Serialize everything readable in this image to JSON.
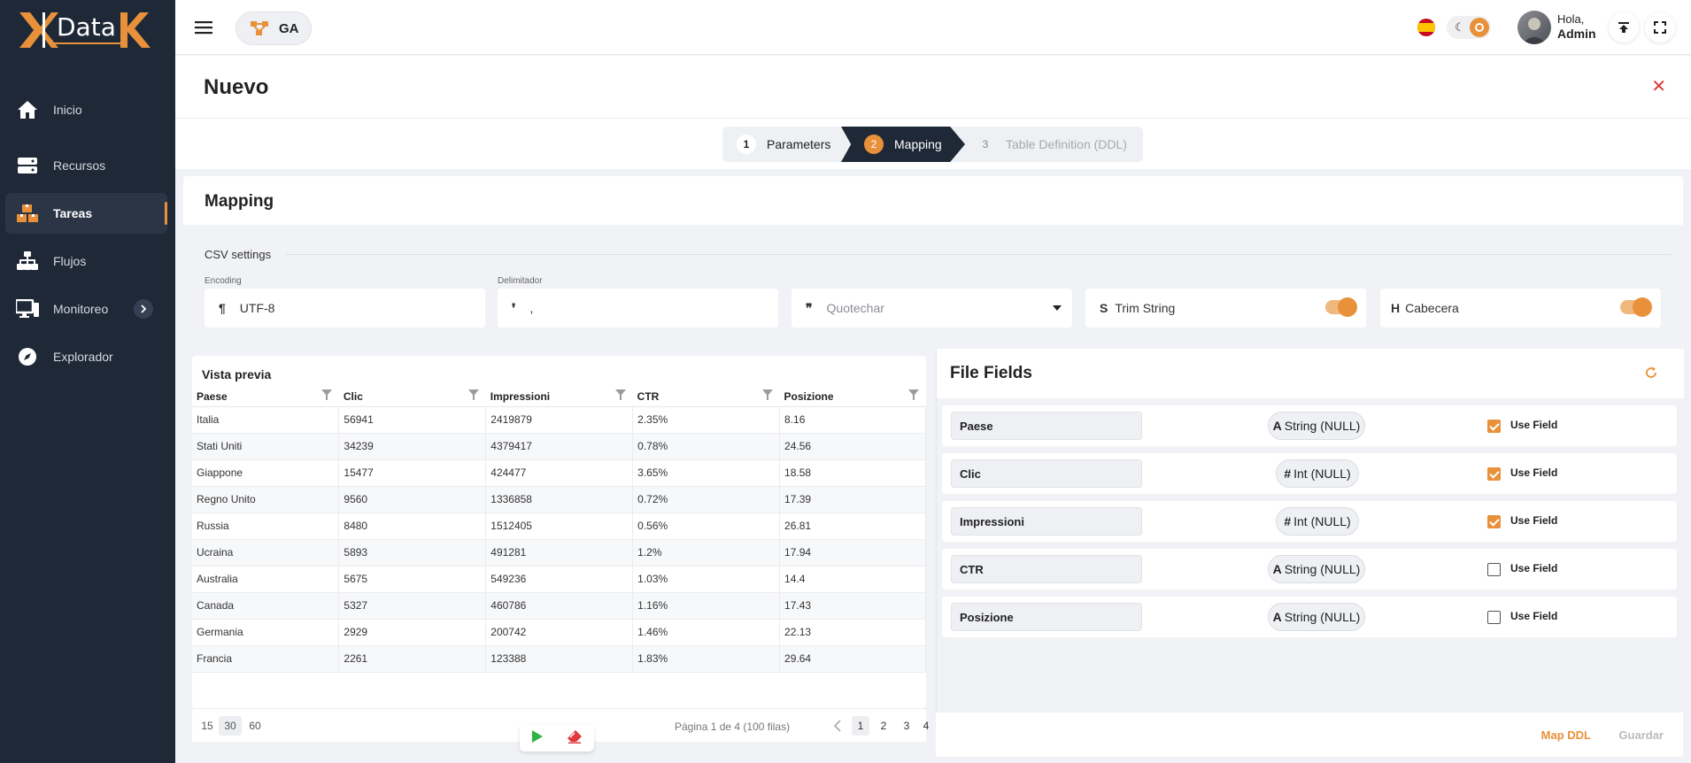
{
  "brand": {
    "logo_text": "Data"
  },
  "sidebar": {
    "items": [
      {
        "label": "Inicio",
        "icon": "home-icon"
      },
      {
        "label": "Recursos",
        "icon": "server-icon"
      },
      {
        "label": "Tareas",
        "icon": "boxes-icon",
        "active": true
      },
      {
        "label": "Flujos",
        "icon": "sitemap-icon"
      },
      {
        "label": "Monitoreo",
        "icon": "monitor-icon",
        "has_submenu": true
      },
      {
        "label": "Explorador",
        "icon": "compass-icon"
      }
    ]
  },
  "topbar": {
    "workspace": "GA",
    "greeting": "Hola,",
    "user_name": "Admin"
  },
  "page": {
    "title": "Nuevo"
  },
  "stepper": {
    "steps": [
      {
        "number": "1",
        "label": "Parameters"
      },
      {
        "number": "2",
        "label": "Mapping"
      },
      {
        "number": "3",
        "label": "Table Definition (DDL)"
      }
    ],
    "current": 2
  },
  "mapping": {
    "title": "Mapping",
    "csv_settings_label": "CSV settings",
    "encoding": {
      "label": "Encoding",
      "glyph": "¶",
      "value": "UTF-8"
    },
    "delimiter": {
      "label": "Delimitador",
      "glyph": "❜",
      "value": ","
    },
    "quotechar": {
      "glyph": "❞",
      "placeholder": "Quotechar"
    },
    "trim_string": {
      "glyph": "S",
      "label": "Trim String",
      "on": true
    },
    "header": {
      "glyph": "H",
      "label": "Cabecera",
      "on": true
    }
  },
  "preview": {
    "title": "Vista previa",
    "columns": [
      "Paese",
      "Clic",
      "Impressioni",
      "CTR",
      "Posizione"
    ],
    "rows": [
      [
        "Italia",
        "56941",
        "2419879",
        "2.35%",
        "8.16"
      ],
      [
        "Stati Uniti",
        "34239",
        "4379417",
        "0.78%",
        "24.56"
      ],
      [
        "Giappone",
        "15477",
        "424477",
        "3.65%",
        "18.58"
      ],
      [
        "Regno Unito",
        "9560",
        "1336858",
        "0.72%",
        "17.39"
      ],
      [
        "Russia",
        "8480",
        "1512405",
        "0.56%",
        "26.81"
      ],
      [
        "Ucraina",
        "5893",
        "491281",
        "1.2%",
        "17.94"
      ],
      [
        "Australia",
        "5675",
        "549236",
        "1.03%",
        "14.4"
      ],
      [
        "Canada",
        "5327",
        "460786",
        "1.16%",
        "17.43"
      ],
      [
        "Germania",
        "2929",
        "200742",
        "1.46%",
        "22.13"
      ],
      [
        "Francia",
        "2261",
        "123388",
        "1.83%",
        "29.64"
      ]
    ],
    "page_sizes": [
      "15",
      "30",
      "60"
    ],
    "page_size_selected": "30",
    "page_info": "Página 1 de 4 (100 filas)",
    "pages": [
      "1",
      "2",
      "3",
      "4"
    ],
    "current_page": "1"
  },
  "file_fields": {
    "title": "File Fields",
    "use_field_label": "Use Field",
    "fields": [
      {
        "name": "Paese",
        "type_glyph": "A",
        "type": "String (NULL)",
        "use": true
      },
      {
        "name": "Clic",
        "type_glyph": "#",
        "type": "Int (NULL)",
        "use": true
      },
      {
        "name": "Impressioni",
        "type_glyph": "#",
        "type": "Int (NULL)",
        "use": true
      },
      {
        "name": "CTR",
        "type_glyph": "A",
        "type": "String (NULL)",
        "use": false
      },
      {
        "name": "Posizione",
        "type_glyph": "A",
        "type": "String (NULL)",
        "use": false
      }
    ]
  },
  "footer": {
    "map_ddl": "Map DDL",
    "save": "Guardar"
  },
  "colors": {
    "accent": "#e8913a",
    "sidebar": "#1f2837",
    "danger": "#e0383b",
    "play": "#2fb344"
  }
}
